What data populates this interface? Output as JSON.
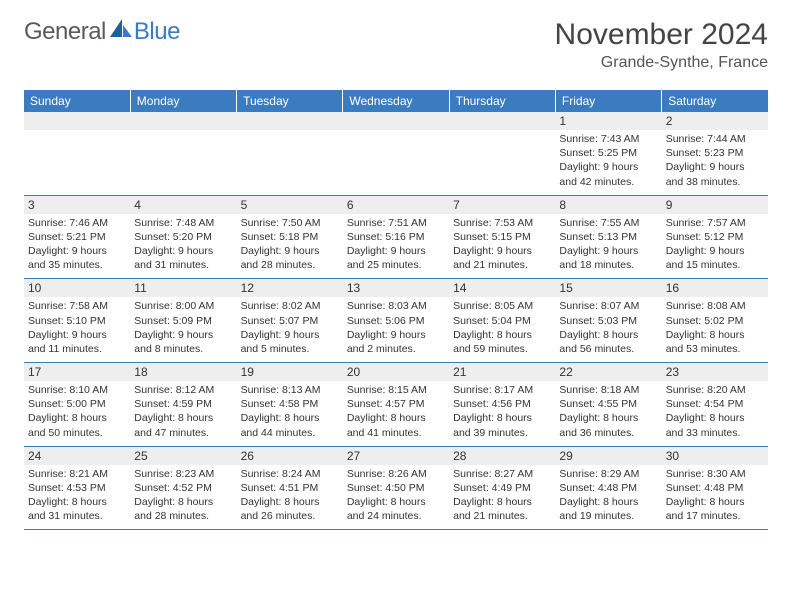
{
  "brand": {
    "part1": "General",
    "part2": "Blue"
  },
  "title": "November 2024",
  "location": "Grande-Synthe, France",
  "colors": {
    "header_bg": "#3b7bbf",
    "header_text": "#ffffff",
    "daynum_bg": "#eeeeee",
    "cell_border": "#3b7bbf",
    "body_text": "#333333"
  },
  "typography": {
    "title_fontsize": 30,
    "location_fontsize": 16,
    "dayhead_fontsize": 12,
    "daynum_fontsize": 12,
    "info_fontsize": 10.5
  },
  "day_headers": [
    "Sunday",
    "Monday",
    "Tuesday",
    "Wednesday",
    "Thursday",
    "Friday",
    "Saturday"
  ],
  "weeks": [
    [
      {
        "n": "",
        "sunrise": "",
        "sunset": "",
        "daylight": ""
      },
      {
        "n": "",
        "sunrise": "",
        "sunset": "",
        "daylight": ""
      },
      {
        "n": "",
        "sunrise": "",
        "sunset": "",
        "daylight": ""
      },
      {
        "n": "",
        "sunrise": "",
        "sunset": "",
        "daylight": ""
      },
      {
        "n": "",
        "sunrise": "",
        "sunset": "",
        "daylight": ""
      },
      {
        "n": "1",
        "sunrise": "Sunrise: 7:43 AM",
        "sunset": "Sunset: 5:25 PM",
        "daylight": "Daylight: 9 hours and 42 minutes."
      },
      {
        "n": "2",
        "sunrise": "Sunrise: 7:44 AM",
        "sunset": "Sunset: 5:23 PM",
        "daylight": "Daylight: 9 hours and 38 minutes."
      }
    ],
    [
      {
        "n": "3",
        "sunrise": "Sunrise: 7:46 AM",
        "sunset": "Sunset: 5:21 PM",
        "daylight": "Daylight: 9 hours and 35 minutes."
      },
      {
        "n": "4",
        "sunrise": "Sunrise: 7:48 AM",
        "sunset": "Sunset: 5:20 PM",
        "daylight": "Daylight: 9 hours and 31 minutes."
      },
      {
        "n": "5",
        "sunrise": "Sunrise: 7:50 AM",
        "sunset": "Sunset: 5:18 PM",
        "daylight": "Daylight: 9 hours and 28 minutes."
      },
      {
        "n": "6",
        "sunrise": "Sunrise: 7:51 AM",
        "sunset": "Sunset: 5:16 PM",
        "daylight": "Daylight: 9 hours and 25 minutes."
      },
      {
        "n": "7",
        "sunrise": "Sunrise: 7:53 AM",
        "sunset": "Sunset: 5:15 PM",
        "daylight": "Daylight: 9 hours and 21 minutes."
      },
      {
        "n": "8",
        "sunrise": "Sunrise: 7:55 AM",
        "sunset": "Sunset: 5:13 PM",
        "daylight": "Daylight: 9 hours and 18 minutes."
      },
      {
        "n": "9",
        "sunrise": "Sunrise: 7:57 AM",
        "sunset": "Sunset: 5:12 PM",
        "daylight": "Daylight: 9 hours and 15 minutes."
      }
    ],
    [
      {
        "n": "10",
        "sunrise": "Sunrise: 7:58 AM",
        "sunset": "Sunset: 5:10 PM",
        "daylight": "Daylight: 9 hours and 11 minutes."
      },
      {
        "n": "11",
        "sunrise": "Sunrise: 8:00 AM",
        "sunset": "Sunset: 5:09 PM",
        "daylight": "Daylight: 9 hours and 8 minutes."
      },
      {
        "n": "12",
        "sunrise": "Sunrise: 8:02 AM",
        "sunset": "Sunset: 5:07 PM",
        "daylight": "Daylight: 9 hours and 5 minutes."
      },
      {
        "n": "13",
        "sunrise": "Sunrise: 8:03 AM",
        "sunset": "Sunset: 5:06 PM",
        "daylight": "Daylight: 9 hours and 2 minutes."
      },
      {
        "n": "14",
        "sunrise": "Sunrise: 8:05 AM",
        "sunset": "Sunset: 5:04 PM",
        "daylight": "Daylight: 8 hours and 59 minutes."
      },
      {
        "n": "15",
        "sunrise": "Sunrise: 8:07 AM",
        "sunset": "Sunset: 5:03 PM",
        "daylight": "Daylight: 8 hours and 56 minutes."
      },
      {
        "n": "16",
        "sunrise": "Sunrise: 8:08 AM",
        "sunset": "Sunset: 5:02 PM",
        "daylight": "Daylight: 8 hours and 53 minutes."
      }
    ],
    [
      {
        "n": "17",
        "sunrise": "Sunrise: 8:10 AM",
        "sunset": "Sunset: 5:00 PM",
        "daylight": "Daylight: 8 hours and 50 minutes."
      },
      {
        "n": "18",
        "sunrise": "Sunrise: 8:12 AM",
        "sunset": "Sunset: 4:59 PM",
        "daylight": "Daylight: 8 hours and 47 minutes."
      },
      {
        "n": "19",
        "sunrise": "Sunrise: 8:13 AM",
        "sunset": "Sunset: 4:58 PM",
        "daylight": "Daylight: 8 hours and 44 minutes."
      },
      {
        "n": "20",
        "sunrise": "Sunrise: 8:15 AM",
        "sunset": "Sunset: 4:57 PM",
        "daylight": "Daylight: 8 hours and 41 minutes."
      },
      {
        "n": "21",
        "sunrise": "Sunrise: 8:17 AM",
        "sunset": "Sunset: 4:56 PM",
        "daylight": "Daylight: 8 hours and 39 minutes."
      },
      {
        "n": "22",
        "sunrise": "Sunrise: 8:18 AM",
        "sunset": "Sunset: 4:55 PM",
        "daylight": "Daylight: 8 hours and 36 minutes."
      },
      {
        "n": "23",
        "sunrise": "Sunrise: 8:20 AM",
        "sunset": "Sunset: 4:54 PM",
        "daylight": "Daylight: 8 hours and 33 minutes."
      }
    ],
    [
      {
        "n": "24",
        "sunrise": "Sunrise: 8:21 AM",
        "sunset": "Sunset: 4:53 PM",
        "daylight": "Daylight: 8 hours and 31 minutes."
      },
      {
        "n": "25",
        "sunrise": "Sunrise: 8:23 AM",
        "sunset": "Sunset: 4:52 PM",
        "daylight": "Daylight: 8 hours and 28 minutes."
      },
      {
        "n": "26",
        "sunrise": "Sunrise: 8:24 AM",
        "sunset": "Sunset: 4:51 PM",
        "daylight": "Daylight: 8 hours and 26 minutes."
      },
      {
        "n": "27",
        "sunrise": "Sunrise: 8:26 AM",
        "sunset": "Sunset: 4:50 PM",
        "daylight": "Daylight: 8 hours and 24 minutes."
      },
      {
        "n": "28",
        "sunrise": "Sunrise: 8:27 AM",
        "sunset": "Sunset: 4:49 PM",
        "daylight": "Daylight: 8 hours and 21 minutes."
      },
      {
        "n": "29",
        "sunrise": "Sunrise: 8:29 AM",
        "sunset": "Sunset: 4:48 PM",
        "daylight": "Daylight: 8 hours and 19 minutes."
      },
      {
        "n": "30",
        "sunrise": "Sunrise: 8:30 AM",
        "sunset": "Sunset: 4:48 PM",
        "daylight": "Daylight: 8 hours and 17 minutes."
      }
    ]
  ]
}
